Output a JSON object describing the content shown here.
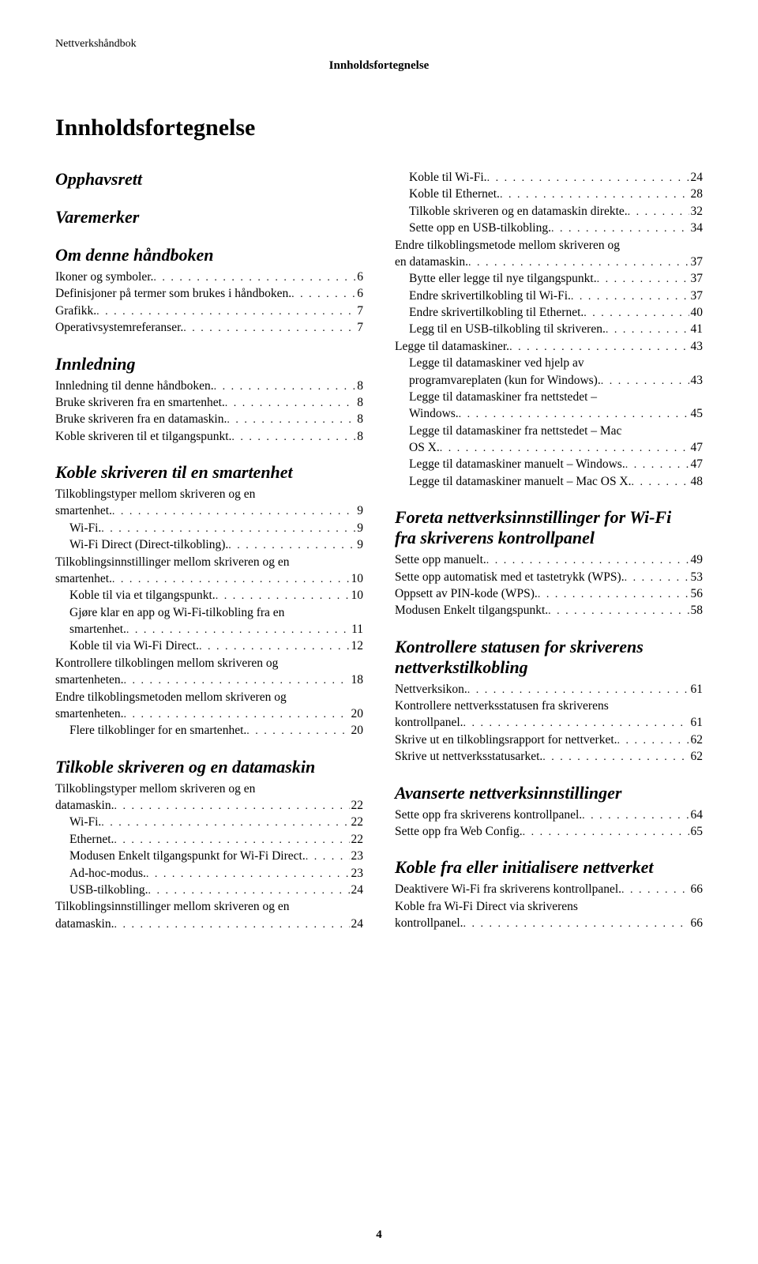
{
  "running_head_left": "Nettverkshåndbok",
  "running_head_center": "Innholdsfortegnelse",
  "title": "Innholdsfortegnelse",
  "page_number": "4",
  "left": {
    "s1": "Opphavsrett",
    "s2": "Varemerker",
    "s3": "Om denne håndboken",
    "s3_e1_t": "Ikoner og symboler.",
    "s3_e1_p": "6",
    "s3_e2_t": "Definisjoner på termer som brukes i håndboken.",
    "s3_e2_p": "6",
    "s3_e3_t": "Grafikk.",
    "s3_e3_p": "7",
    "s3_e4_t": "Operativsystemreferanser.",
    "s3_e4_p": "7",
    "s4": "Innledning",
    "s4_e1_t": "Innledning til denne håndboken.",
    "s4_e1_p": "8",
    "s4_e2_t": "Bruke skriveren fra en smartenhet.",
    "s4_e2_p": "8",
    "s4_e3_t": "Bruke skriveren fra en datamaskin.",
    "s4_e3_p": "8",
    "s4_e4_t": "Koble skriveren til et tilgangspunkt.",
    "s4_e4_p": "8",
    "s5": "Koble skriveren til en smartenhet",
    "s5_e1a": "Tilkoblingstyper mellom skriveren og en",
    "s5_e1b_t": "smartenhet.",
    "s5_e1b_p": "9",
    "s5_e2_t": "Wi-Fi.",
    "s5_e2_p": "9",
    "s5_e3_t": "Wi-Fi Direct (Direct-tilkobling).",
    "s5_e3_p": "9",
    "s5_e4a": "Tilkoblingsinnstillinger mellom skriveren og en",
    "s5_e4b_t": "smartenhet.",
    "s5_e4b_p": "10",
    "s5_e5_t": "Koble til via et tilgangspunkt.",
    "s5_e5_p": "10",
    "s5_e6a": "Gjøre klar en app og Wi-Fi-tilkobling fra en",
    "s5_e6b_t": "smartenhet.",
    "s5_e6b_p": "11",
    "s5_e7_t": "Koble til via Wi-Fi Direct.",
    "s5_e7_p": "12",
    "s5_e8a": "Kontrollere tilkoblingen mellom skriveren og",
    "s5_e8b_t": "smartenheten.",
    "s5_e8b_p": "18",
    "s5_e9a": "Endre tilkoblingsmetoden mellom skriveren og",
    "s5_e9b_t": "smartenheten.",
    "s5_e9b_p": "20",
    "s5_e10_t": "Flere tilkoblinger for en smartenhet.",
    "s5_e10_p": "20",
    "s6": "Tilkoble skriveren og en datamaskin",
    "s6_e1a": "Tilkoblingstyper mellom skriveren og en",
    "s6_e1b_t": "datamaskin.",
    "s6_e1b_p": "22",
    "s6_e2_t": "Wi-Fi.",
    "s6_e2_p": "22",
    "s6_e3_t": "Ethernet.",
    "s6_e3_p": "22",
    "s6_e4_t": "Modusen Enkelt tilgangspunkt for Wi-Fi Direct.",
    "s6_e4_p": "23",
    "s6_e5_t": "Ad-hoc-modus.",
    "s6_e5_p": "23",
    "s6_e6_t": "USB-tilkobling.",
    "s6_e6_p": "24",
    "s6_e7a": "Tilkoblingsinnstillinger mellom skriveren og en",
    "s6_e7b_t": "datamaskin.",
    "s6_e7b_p": "24"
  },
  "right": {
    "r1_t": "Koble til Wi-Fi.",
    "r1_p": "24",
    "r2_t": "Koble til Ethernet.",
    "r2_p": "28",
    "r3_t": "Tilkoble skriveren og en datamaskin direkte.",
    "r3_p": "32",
    "r4_t": "Sette opp en USB-tilkobling.",
    "r4_p": "34",
    "r5a": "Endre tilkoblingsmetode mellom skriveren og",
    "r5b_t": "en datamaskin.",
    "r5b_p": "37",
    "r6_t": "Bytte eller legge til nye tilgangspunkt.",
    "r6_p": "37",
    "r7_t": "Endre skrivertilkobling til Wi-Fi.",
    "r7_p": "37",
    "r8_t": "Endre skrivertilkobling til Ethernet.",
    "r8_p": "40",
    "r9_t": "Legg til en USB-tilkobling til skriveren.",
    "r9_p": "41",
    "r10_t": "Legge til datamaskiner.",
    "r10_p": "43",
    "r11a": "Legge til datamaskiner ved hjelp av",
    "r11b_t": "programvareplaten (kun for Windows).",
    "r11b_p": "43",
    "r12a": "Legge til datamaskiner fra nettstedet –",
    "r12b_t": "Windows.",
    "r12b_p": "45",
    "r13a": "Legge til datamaskiner fra nettstedet – Mac",
    "r13b_t": "OS X.",
    "r13b_p": "47",
    "r14_t": "Legge til datamaskiner manuelt – Windows.",
    "r14_p": "47",
    "r15_t": "Legge til datamaskiner manuelt – Mac OS X.",
    "r15_p": "48",
    "s7a": "Foreta nettverksinnstillinger for Wi-Fi",
    "s7b": "fra skriverens kontrollpanel",
    "s7_e1_t": "Sette opp manuelt.",
    "s7_e1_p": "49",
    "s7_e2_t": "Sette opp automatisk med et tastetrykk (WPS).",
    "s7_e2_p": "53",
    "s7_e3_t": "Oppsett av PIN-kode (WPS).",
    "s7_e3_p": "56",
    "s7_e4_t": "Modusen Enkelt tilgangspunkt.",
    "s7_e4_p": "58",
    "s8a": "Kontrollere statusen for skriverens",
    "s8b": "nettverkstilkobling",
    "s8_e1_t": "Nettverksikon.",
    "s8_e1_p": "61",
    "s8_e2a": "Kontrollere nettverksstatusen fra skriverens",
    "s8_e2b_t": "kontrollpanel.",
    "s8_e2b_p": "61",
    "s8_e3_t": "Skrive ut en tilkoblingsrapport for nettverket.",
    "s8_e3_p": "62",
    "s8_e4_t": "Skrive ut nettverksstatusarket.",
    "s8_e4_p": "62",
    "s9": "Avanserte nettverksinnstillinger",
    "s9_e1_t": "Sette opp fra skriverens kontrollpanel.",
    "s9_e1_p": "64",
    "s9_e2_t": "Sette opp fra Web Config.",
    "s9_e2_p": "65",
    "s10": "Koble fra eller initialisere nettverket",
    "s10_e1_t": "Deaktivere Wi-Fi fra skriverens kontrollpanel.",
    "s10_e1_p": "66",
    "s10_e2a": "Koble fra Wi-Fi Direct via skriverens",
    "s10_e2b_t": "kontrollpanel.",
    "s10_e2b_p": "66"
  }
}
